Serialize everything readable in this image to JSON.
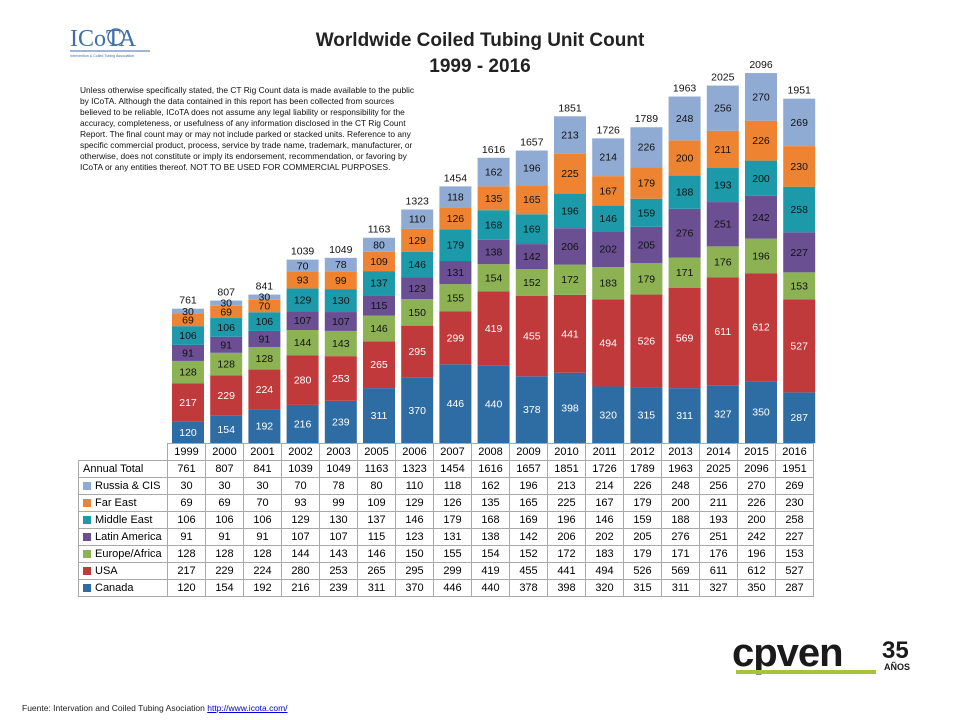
{
  "header": {
    "logo_text": "ICoTA",
    "logo_subtitle": "Intervention & Coiled Tubing Association",
    "title_line1": "Worldwide Coiled Tubing Unit Count",
    "title_line2": "1999 - 2016"
  },
  "disclaimer": "Unless otherwise specifically stated, the CT Rig Count data is made available to the public by ICoTA.  Although the data contained in this report has been collected from sources believed to be reliable, ICoTA does not assume any legal liability or responsibility for the accuracy, completeness, or usefulness of any information disclosed in the CT Rig Count Report.  The final count may or may not include parked or stacked units. Reference to any specific commercial product, process, service by trade name, trademark, manufacturer, or otherwise, does not constitute or imply its endorsement, recommendation, or favoring by ICoTA or any entities thereof.  NOT TO BE USED FOR COMMERCIAL PURPOSES.",
  "chart_data": {
    "type": "bar",
    "stacked": true,
    "title": "Worldwide Coiled Tubing Unit Count",
    "subtitle": "1999 - 2016",
    "categories": [
      "1999",
      "2000",
      "2001",
      "2002",
      "2003",
      "2005",
      "2006",
      "2007",
      "2008",
      "2009",
      "2010",
      "2011",
      "2012",
      "2013",
      "2014",
      "2015",
      "2016"
    ],
    "totals_label": "Annual Total",
    "totals": [
      761,
      807,
      841,
      1039,
      1049,
      1163,
      1323,
      1454,
      1616,
      1657,
      1851,
      1726,
      1789,
      1963,
      2025,
      2096,
      1951
    ],
    "series": [
      {
        "name": "Canada",
        "color": "#2e6da4",
        "values": [
          120,
          154,
          192,
          216,
          239,
          311,
          370,
          446,
          440,
          378,
          398,
          320,
          315,
          311,
          327,
          350,
          287
        ]
      },
      {
        "name": "USA",
        "color": "#c0393b",
        "values": [
          217,
          229,
          224,
          280,
          253,
          265,
          295,
          299,
          419,
          455,
          441,
          494,
          526,
          569,
          611,
          612,
          527
        ]
      },
      {
        "name": "Europe/Africa",
        "color": "#8cb254",
        "values": [
          128,
          128,
          128,
          144,
          143,
          146,
          150,
          155,
          154,
          152,
          172,
          183,
          179,
          171,
          176,
          196,
          153
        ]
      },
      {
        "name": "Latin America",
        "color": "#6b4f93",
        "values": [
          91,
          91,
          91,
          107,
          107,
          115,
          123,
          131,
          138,
          142,
          206,
          202,
          205,
          276,
          251,
          242,
          227
        ]
      },
      {
        "name": "Middle East",
        "color": "#1d9aaa",
        "values": [
          106,
          106,
          106,
          129,
          130,
          137,
          146,
          179,
          168,
          169,
          196,
          146,
          159,
          188,
          193,
          200,
          258
        ]
      },
      {
        "name": "Far East",
        "color": "#ee8431",
        "values": [
          69,
          69,
          70,
          93,
          99,
          109,
          129,
          126,
          135,
          165,
          225,
          167,
          179,
          200,
          211,
          226,
          230
        ]
      },
      {
        "name": "Russia & CIS",
        "color": "#8fabd3",
        "values": [
          30,
          30,
          30,
          70,
          78,
          80,
          110,
          118,
          162,
          196,
          213,
          214,
          226,
          248,
          256,
          270,
          269
        ]
      }
    ],
    "table_row_order": [
      "Russia & CIS",
      "Far East",
      "Middle East",
      "Latin America",
      "Europe/Africa",
      "USA",
      "Canada"
    ]
  },
  "brand": {
    "name": "cpven",
    "badge": "35",
    "badge_sub": "AÑOS",
    "color_dark": "#1a1a1a",
    "color_accent": "#a6c43a"
  },
  "footer": {
    "text": "Fuente: Intervation and Coiled Tubing Asociation ",
    "link": "http://www.icota.com/"
  }
}
